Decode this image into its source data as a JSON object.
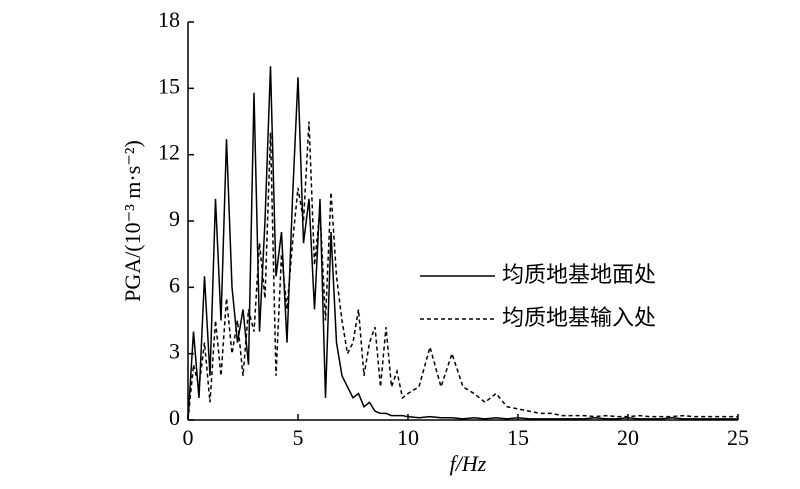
{
  "chart_data": {
    "type": "line",
    "x_label": "f/Hz",
    "y_label": "PGA/(10⁻³ m·s⁻²)",
    "xlim": [
      0,
      25
    ],
    "xticks": [
      0,
      5,
      10,
      15,
      20,
      25
    ],
    "ylim": [
      0,
      18
    ],
    "yticks": [
      0,
      3,
      6,
      9,
      12,
      15,
      18
    ],
    "legend": "center-right",
    "x": [
      0,
      0.25,
      0.5,
      0.75,
      1,
      1.25,
      1.5,
      1.75,
      2,
      2.25,
      2.5,
      2.75,
      3,
      3.25,
      3.5,
      3.75,
      4,
      4.25,
      4.5,
      4.75,
      5,
      5.25,
      5.5,
      5.75,
      6,
      6.25,
      6.5,
      6.75,
      7,
      7.25,
      7.5,
      7.75,
      8,
      8.25,
      8.5,
      8.75,
      9,
      9.25,
      9.5,
      9.75,
      10,
      10.5,
      11,
      11.5,
      12,
      12.5,
      13,
      13.5,
      14,
      14.5,
      15,
      15.5,
      16,
      16.5,
      17,
      17.5,
      18,
      18.5,
      19,
      19.5,
      20,
      20.5,
      21,
      21.5,
      22,
      22.5,
      23,
      23.5,
      24,
      24.5,
      25
    ],
    "series": [
      {
        "name": "均质地基地面处",
        "color": "#000000",
        "style": "solid",
        "values": [
          0,
          4.0,
          1.0,
          6.5,
          2.0,
          10.0,
          4.5,
          12.7,
          6.0,
          3.5,
          5.0,
          2.5,
          14.8,
          4.0,
          9.0,
          16.0,
          6.5,
          8.5,
          3.5,
          10.0,
          15.5,
          8.0,
          10.0,
          5.0,
          10.0,
          1.0,
          8.5,
          3.5,
          2.0,
          1.5,
          1.0,
          1.2,
          0.6,
          0.8,
          0.4,
          0.3,
          0.3,
          0.2,
          0.2,
          0.2,
          0.15,
          0.1,
          0.15,
          0.1,
          0.1,
          0.05,
          0.1,
          0.05,
          0.1,
          0.05,
          0.1,
          0.05,
          0.05,
          0.05,
          0.05,
          0.05,
          0.05,
          0.1,
          0.05,
          0.05,
          0.1,
          0.05,
          0.05,
          0.05,
          0.1,
          0.05,
          0.05,
          0.05,
          0.05,
          0.05,
          0.05
        ]
      },
      {
        "name": "均质地基输入处",
        "color": "#000000",
        "style": "dashed",
        "values": [
          0,
          2.5,
          1.5,
          3.5,
          0.8,
          4.5,
          2.0,
          5.5,
          3.0,
          4.5,
          2.0,
          5.0,
          4.0,
          8.0,
          5.5,
          13.0,
          2.0,
          7.5,
          5.0,
          8.0,
          10.5,
          9.0,
          13.5,
          7.0,
          9.5,
          4.5,
          10.3,
          6.5,
          4.5,
          3.0,
          3.5,
          5.0,
          2.0,
          3.5,
          4.2,
          1.5,
          4.2,
          1.5,
          2.2,
          1.0,
          1.2,
          1.5,
          3.3,
          1.5,
          3.0,
          1.5,
          1.2,
          0.8,
          1.2,
          0.6,
          0.5,
          0.4,
          0.3,
          0.3,
          0.2,
          0.2,
          0.2,
          0.15,
          0.2,
          0.15,
          0.15,
          0.2,
          0.15,
          0.15,
          0.15,
          0.2,
          0.15,
          0.15,
          0.15,
          0.15,
          0.15
        ]
      }
    ]
  }
}
